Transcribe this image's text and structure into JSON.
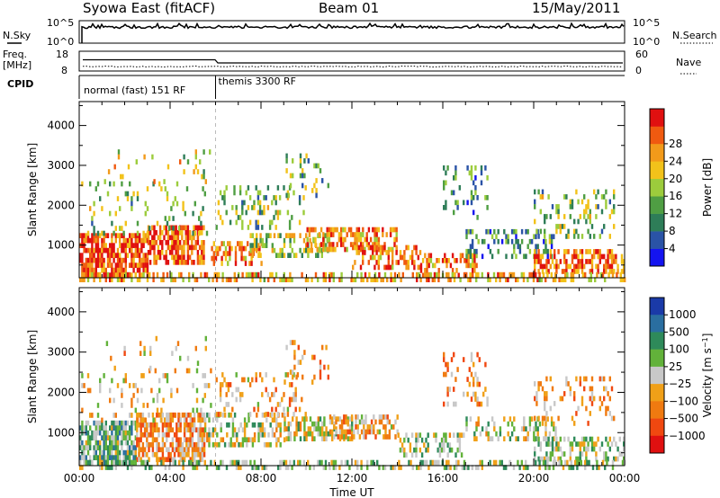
{
  "header": {
    "station": "Syowa East (fitACF)",
    "beam": "Beam 01",
    "date": "15/May/2011"
  },
  "summary_panels": {
    "nsky": {
      "left_label": "N.Sky",
      "left_ticks": [
        "10^5",
        "10^0"
      ],
      "right_label": "N.Search",
      "right_ticks": [
        "10^5",
        "10^0"
      ]
    },
    "freq": {
      "left_label_1": "Freq.",
      "left_label_2": "[MHz]",
      "left_ticks": [
        "18",
        "8"
      ],
      "right_label": "Nave",
      "right_ticks": [
        "60",
        "0"
      ]
    },
    "cpid": {
      "label": "CPID",
      "modes": [
        {
          "label": "normal (fast) 151 RF",
          "start_hour": 0,
          "end_hour": 6
        },
        {
          "label": "themis 3300 RF",
          "start_hour": 6,
          "end_hour": 24
        }
      ]
    }
  },
  "x_axis": {
    "label": "Time UT",
    "ticks": [
      "00:00",
      "04:00",
      "08:00",
      "12:00",
      "16:00",
      "20:00",
      "00:00"
    ]
  },
  "chart_data": [
    {
      "type": "heatmap",
      "title": "Power",
      "xlabel": "Time UT",
      "ylabel": "Slant Range [km]",
      "xlim": [
        0,
        24
      ],
      "ylim": [
        180,
        4600
      ],
      "yticks": [
        1000,
        2000,
        3000,
        4000
      ],
      "colorbar": {
        "label": "Power [dB]",
        "min": 0,
        "max": 32,
        "ticks": [
          "4",
          "8",
          "12",
          "16",
          "20",
          "24",
          "28"
        ],
        "colors": [
          "#1414f0",
          "#2a53a6",
          "#2e7d58",
          "#4f9e43",
          "#9ccc3c",
          "#f2c21a",
          "#f29a1a",
          "#f05a10",
          "#e01010"
        ]
      },
      "regions": [
        {
          "t": [
            0.0,
            3.0
          ],
          "r": [
            280,
            1300
          ],
          "value": 27,
          "density": 0.72
        },
        {
          "t": [
            3.0,
            5.5
          ],
          "r": [
            600,
            1500
          ],
          "value": 26,
          "density": 0.7
        },
        {
          "t": [
            0.0,
            5.8
          ],
          "r": [
            1300,
            2600
          ],
          "value": 14,
          "density": 0.12
        },
        {
          "t": [
            1.0,
            5.8
          ],
          "r": [
            2600,
            3400
          ],
          "value": 18,
          "density": 0.07
        },
        {
          "t": [
            5.8,
            8.0
          ],
          "r": [
            500,
            1100
          ],
          "value": 24,
          "density": 0.45
        },
        {
          "t": [
            6.0,
            10.0
          ],
          "r": [
            1400,
            2500
          ],
          "value": 14,
          "density": 0.22
        },
        {
          "t": [
            7.5,
            11.0
          ],
          "r": [
            700,
            1300
          ],
          "value": 16,
          "density": 0.35
        },
        {
          "t": [
            10.0,
            14.0
          ],
          "r": [
            950,
            1450
          ],
          "value": 23,
          "density": 0.55
        },
        {
          "t": [
            9.0,
            11.0
          ],
          "r": [
            2300,
            3300
          ],
          "value": 12,
          "density": 0.12
        },
        {
          "t": [
            12.0,
            15.0
          ],
          "r": [
            500,
            1000
          ],
          "value": 24,
          "density": 0.45
        },
        {
          "t": [
            15.0,
            17.5
          ],
          "r": [
            300,
            800
          ],
          "value": 24,
          "density": 0.5
        },
        {
          "t": [
            16.0,
            18.0
          ],
          "r": [
            1700,
            3000
          ],
          "value": 10,
          "density": 0.18
        },
        {
          "t": [
            17.0,
            21.0
          ],
          "r": [
            700,
            1400
          ],
          "value": 10,
          "density": 0.3
        },
        {
          "t": [
            20.0,
            24.0
          ],
          "r": [
            300,
            900
          ],
          "value": 25,
          "density": 0.5
        },
        {
          "t": [
            20.0,
            23.5
          ],
          "r": [
            1200,
            2400
          ],
          "value": 14,
          "density": 0.2
        },
        {
          "t": [
            0.0,
            24.0
          ],
          "r": [
            180,
            320
          ],
          "value": 22,
          "density": 0.45
        }
      ]
    },
    {
      "type": "heatmap",
      "title": "Velocity",
      "xlabel": "Time UT",
      "ylabel": "Slant Range [km]",
      "xlim": [
        0,
        24
      ],
      "ylim": [
        180,
        4600
      ],
      "yticks": [
        1000,
        2000,
        3000,
        4000
      ],
      "colorbar": {
        "label": "Velocity [m s^-1]",
        "min": -1200,
        "max": 1200,
        "ticks": [
          "1000",
          "500",
          "100",
          "25",
          "−25",
          "−100",
          "−500",
          "−1000"
        ],
        "colors": [
          "#1a3aa8",
          "#2a6ea0",
          "#2e8a5a",
          "#62b23a",
          "#c8c8c8",
          "#f0a018",
          "#f07a10",
          "#f04810",
          "#e01010"
        ]
      },
      "regions": [
        {
          "t": [
            0.0,
            2.5
          ],
          "r": [
            280,
            1300
          ],
          "value": 300,
          "density": 0.72
        },
        {
          "t": [
            2.5,
            5.5
          ],
          "r": [
            350,
            1500
          ],
          "value": -400,
          "density": 0.72
        },
        {
          "t": [
            0.0,
            5.8
          ],
          "r": [
            1300,
            2600
          ],
          "value": -150,
          "density": 0.12
        },
        {
          "t": [
            1.0,
            5.8
          ],
          "r": [
            2600,
            3400
          ],
          "value": -200,
          "density": 0.07
        },
        {
          "t": [
            5.5,
            9.0
          ],
          "r": [
            700,
            1500
          ],
          "value": 20,
          "density": 0.45
        },
        {
          "t": [
            6.0,
            10.0
          ],
          "r": [
            1400,
            2500
          ],
          "value": -300,
          "density": 0.22
        },
        {
          "t": [
            9.0,
            12.0
          ],
          "r": [
            900,
            1400
          ],
          "value": 0,
          "density": 0.45
        },
        {
          "t": [
            11.0,
            14.0
          ],
          "r": [
            950,
            1450
          ],
          "value": -300,
          "density": 0.5
        },
        {
          "t": [
            9.0,
            11.0
          ],
          "r": [
            2300,
            3300
          ],
          "value": -400,
          "density": 0.12
        },
        {
          "t": [
            14.0,
            17.0
          ],
          "r": [
            400,
            1000
          ],
          "value": 80,
          "density": 0.4
        },
        {
          "t": [
            16.0,
            18.0
          ],
          "r": [
            1700,
            3000
          ],
          "value": -400,
          "density": 0.2
        },
        {
          "t": [
            17.0,
            21.0
          ],
          "r": [
            900,
            1400
          ],
          "value": -20,
          "density": 0.35
        },
        {
          "t": [
            20.0,
            24.0
          ],
          "r": [
            300,
            900
          ],
          "value": 200,
          "density": 0.45
        },
        {
          "t": [
            20.0,
            23.5
          ],
          "r": [
            1200,
            2400
          ],
          "value": -400,
          "density": 0.18
        },
        {
          "t": [
            0.0,
            24.0
          ],
          "r": [
            180,
            320
          ],
          "value": 150,
          "density": 0.4
        }
      ]
    }
  ]
}
